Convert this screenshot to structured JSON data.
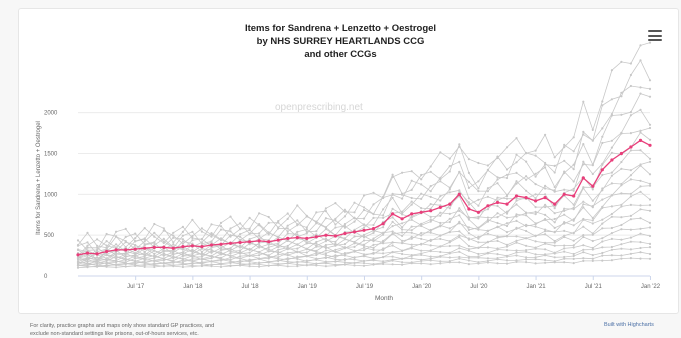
{
  "chart_data": {
    "type": "line",
    "title": [
      "Items for Sandrena + Lenzetto + Oestrogel",
      "by NHS SURREY HEARTLANDS CCG",
      "and other CCGs"
    ],
    "xlabel": "Month",
    "ylabel": "Items for Sandrena + Lenzetto + Oestrogel",
    "x_ticks": [
      "Jul '17",
      "Jan '18",
      "Jul '18",
      "Jan '19",
      "Jul '19",
      "Jan '20",
      "Jul '20",
      "Jan '21",
      "Jul '21",
      "Jan '22"
    ],
    "y_ticks": [
      0,
      500,
      1000,
      1500,
      2000
    ],
    "ylim": [
      0,
      2400
    ],
    "months": 60,
    "x_start_index": 0,
    "tick_month_indices": [
      6,
      12,
      18,
      24,
      30,
      36,
      42,
      48,
      54,
      60
    ],
    "highlight_color": "#e83e7a",
    "other_color": "#c8c8c8",
    "series": [
      {
        "name": "NHS SURREY HEARTLANDS CCG",
        "highlight": true,
        "values": [
          260,
          280,
          270,
          300,
          320,
          320,
          330,
          340,
          350,
          350,
          340,
          360,
          370,
          360,
          380,
          390,
          400,
          410,
          420,
          430,
          420,
          440,
          460,
          470,
          460,
          480,
          500,
          490,
          520,
          540,
          560,
          580,
          640,
          760,
          700,
          760,
          780,
          800,
          840,
          880,
          1000,
          820,
          780,
          860,
          900,
          880,
          980,
          960,
          920,
          960,
          880,
          1000,
          980,
          1200,
          1100,
          1300,
          1420,
          1500,
          1580,
          1660,
          1600
        ]
      }
    ],
    "other_series_profiles": [
      {
        "peak": 2850,
        "base": 380
      },
      {
        "peak": 2550,
        "base": 360
      },
      {
        "peak": 2400,
        "base": 340
      },
      {
        "peak": 2200,
        "base": 320
      },
      {
        "peak": 2000,
        "base": 300
      },
      {
        "peak": 1850,
        "base": 280
      },
      {
        "peak": 1700,
        "base": 260
      },
      {
        "peak": 1550,
        "base": 250
      },
      {
        "peak": 1400,
        "base": 240
      },
      {
        "peak": 1300,
        "base": 230
      },
      {
        "peak": 1200,
        "base": 220
      },
      {
        "peak": 1100,
        "base": 210
      },
      {
        "peak": 1000,
        "base": 200
      },
      {
        "peak": 900,
        "base": 190
      },
      {
        "peak": 800,
        "base": 180
      },
      {
        "peak": 700,
        "base": 170
      },
      {
        "peak": 600,
        "base": 160
      },
      {
        "peak": 500,
        "base": 150
      },
      {
        "peak": 420,
        "base": 140
      },
      {
        "peak": 350,
        "base": 130
      },
      {
        "peak": 280,
        "base": 120
      },
      {
        "peak": 220,
        "base": 110
      }
    ]
  },
  "watermark": "openprescribing.net",
  "footer": {
    "left_line1": "For clarity, practice graphs and maps only show standard GP practices, and",
    "left_line2": "exclude non-standard settings like prisons, out-of-hours services, etc.",
    "right": "Built with Highcharts"
  },
  "menu_icon": "hamburger-menu-icon"
}
